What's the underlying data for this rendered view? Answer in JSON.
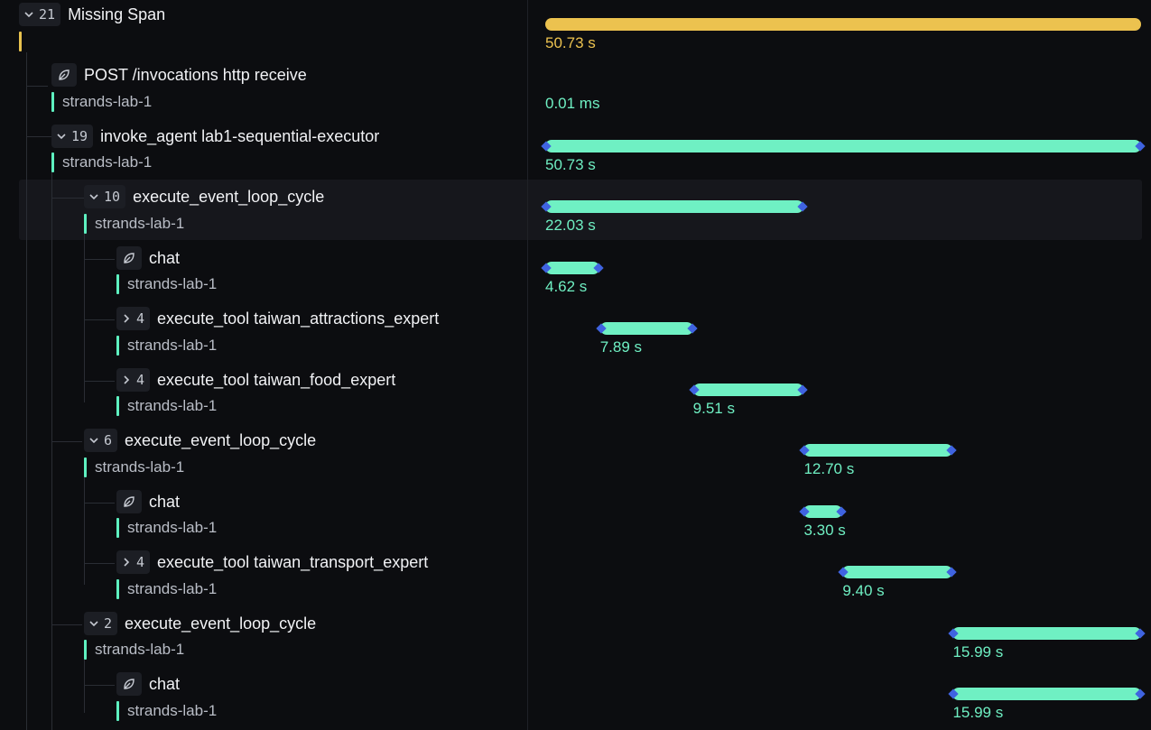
{
  "colors": {
    "background": "#0c0d10",
    "accent_root": "#ecc24f",
    "accent_span": "#6ff0c3",
    "endpoint_marker": "#3f63e0",
    "row_highlight": "#16171c"
  },
  "spans": [
    {
      "expanded": true,
      "count": "21",
      "label": "Missing Span",
      "service": "",
      "duration": "50.73 s",
      "icon": "chevron-down-icon",
      "start": 0.0,
      "end": 1.0
    },
    {
      "expanded": null,
      "count": "",
      "label": "POST /invocations http receive",
      "service": "strands-lab-1",
      "duration": "0.01 ms",
      "icon": "leaf-icon",
      "start": 0.0,
      "end": 0.0
    },
    {
      "expanded": true,
      "count": "19",
      "label": "invoke_agent lab1-sequential-executor",
      "service": "strands-lab-1",
      "duration": "50.73 s",
      "icon": "chevron-down-icon",
      "start": 0.0,
      "end": 1.0
    },
    {
      "expanded": true,
      "count": "10",
      "label": "execute_event_loop_cycle",
      "service": "strands-lab-1",
      "duration": "22.03 s",
      "icon": "chevron-down-icon",
      "start": 0.0,
      "end": 0.434
    },
    {
      "expanded": null,
      "count": "",
      "label": "chat",
      "service": "strands-lab-1",
      "duration": "4.62 s",
      "icon": "leaf-icon",
      "start": 0.0,
      "end": 0.091
    },
    {
      "expanded": false,
      "count": "4",
      "label": "execute_tool taiwan_attractions_expert",
      "service": "strands-lab-1",
      "duration": "7.89 s",
      "icon": "chevron-right-icon",
      "start": 0.092,
      "end": 0.248
    },
    {
      "expanded": false,
      "count": "4",
      "label": "execute_tool taiwan_food_expert",
      "service": "strands-lab-1",
      "duration": "9.51 s",
      "icon": "chevron-right-icon",
      "start": 0.248,
      "end": 0.434
    },
    {
      "expanded": true,
      "count": "6",
      "label": "execute_event_loop_cycle",
      "service": "strands-lab-1",
      "duration": "12.70 s",
      "icon": "chevron-down-icon",
      "start": 0.434,
      "end": 0.684
    },
    {
      "expanded": null,
      "count": "",
      "label": "chat",
      "service": "strands-lab-1",
      "duration": "3.30 s",
      "icon": "leaf-icon",
      "start": 0.434,
      "end": 0.499
    },
    {
      "expanded": false,
      "count": "4",
      "label": "execute_tool taiwan_transport_expert",
      "service": "strands-lab-1",
      "duration": "9.40 s",
      "icon": "chevron-right-icon",
      "start": 0.499,
      "end": 0.684
    },
    {
      "expanded": true,
      "count": "2",
      "label": "execute_event_loop_cycle",
      "service": "strands-lab-1",
      "duration": "15.99 s",
      "icon": "chevron-down-icon",
      "start": 0.684,
      "end": 1.0
    },
    {
      "expanded": null,
      "count": "",
      "label": "chat",
      "service": "strands-lab-1",
      "duration": "15.99 s",
      "icon": "leaf-icon",
      "start": 0.684,
      "end": 1.0
    }
  ]
}
